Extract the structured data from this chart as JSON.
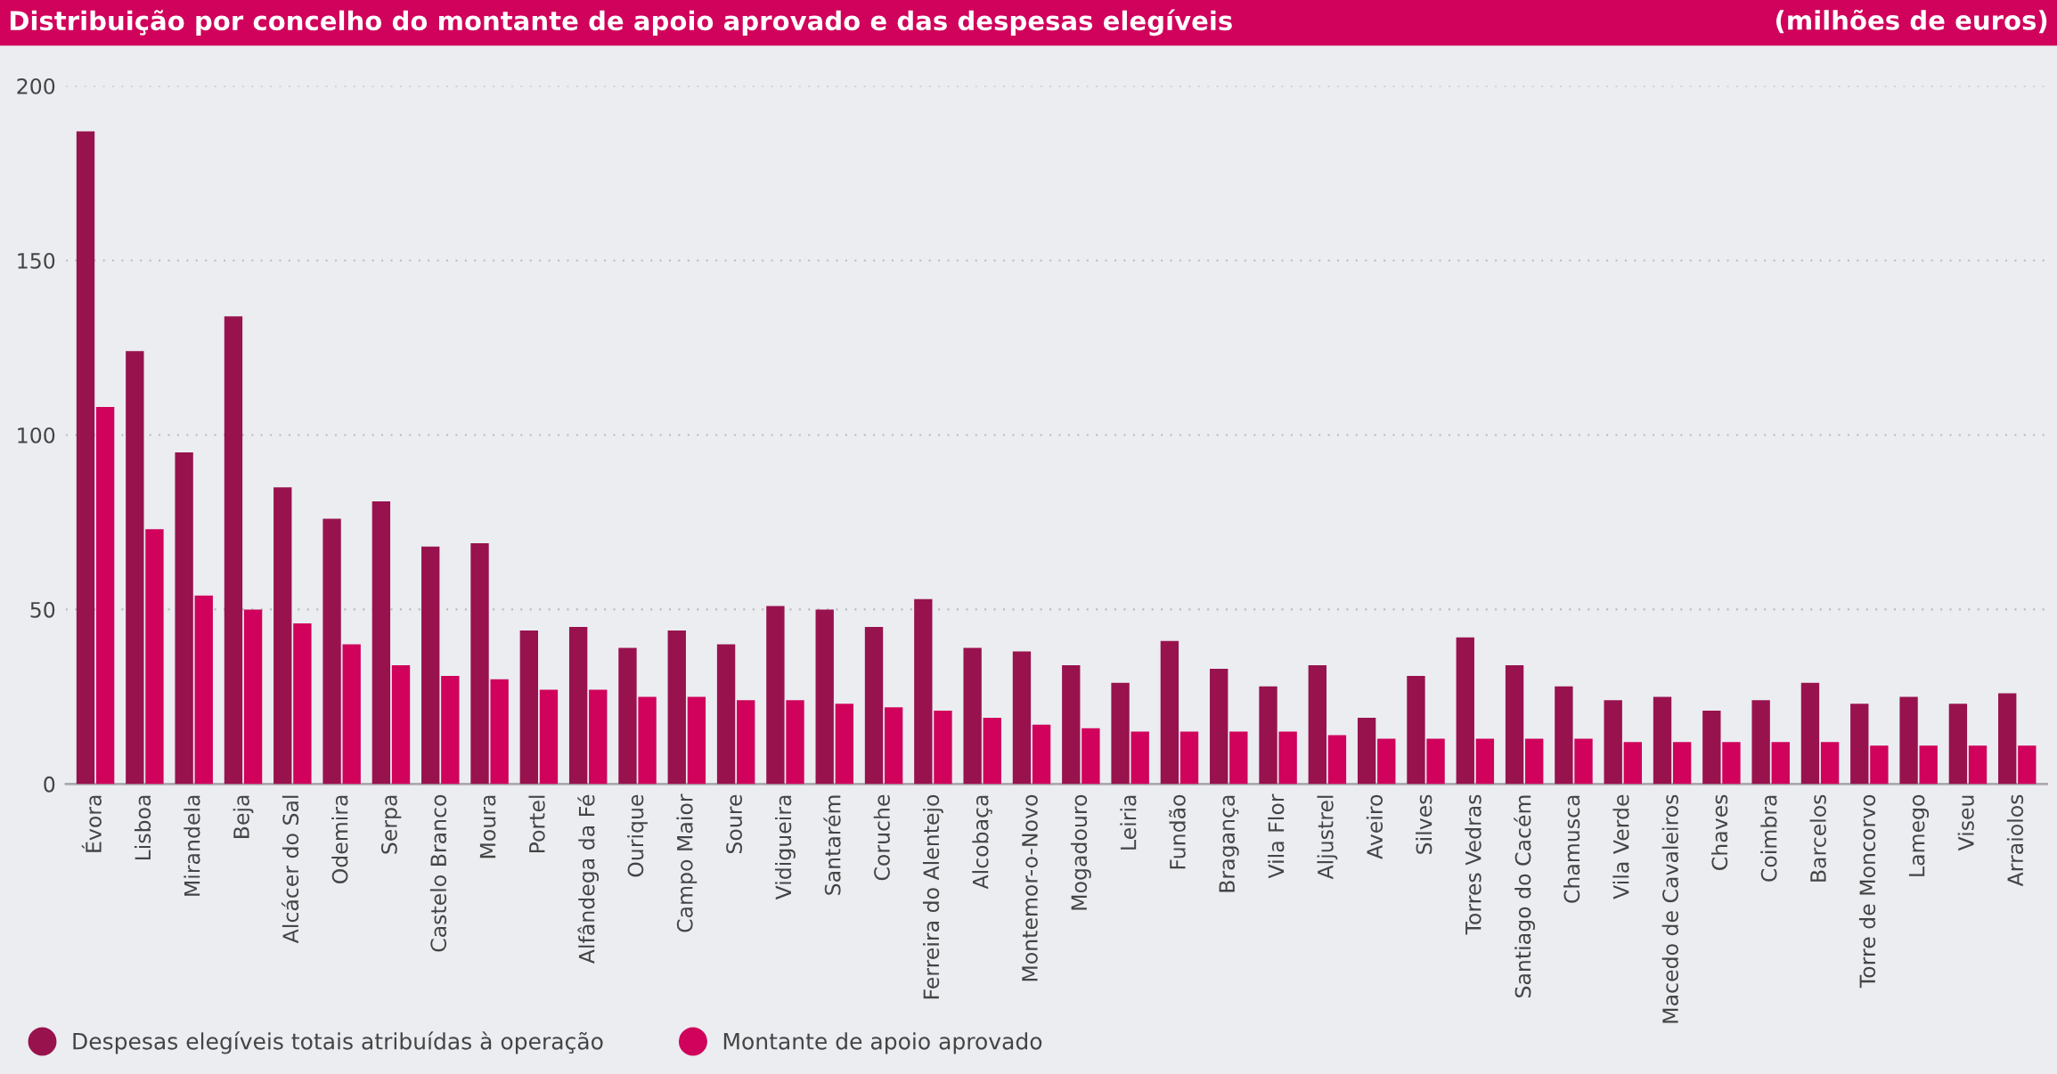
{
  "chart_data": {
    "type": "bar",
    "title": "Distribuição por concelho do montante de apoio aprovado e das despesas elegíveis",
    "subtitle": "(milhões de euros)",
    "categories": [
      "Évora",
      "Lisboa",
      "Mirandela",
      "Beja",
      "Alcácer do Sal",
      "Odemira",
      "Serpa",
      "Castelo Branco",
      "Moura",
      "Portel",
      "Alfândega da Fé",
      "Ourique",
      "Campo Maior",
      "Soure",
      "Vidigueira",
      "Santarém",
      "Coruche",
      "Ferreira do Alentejo",
      "Alcobaça",
      "Montemor-o-Novo",
      "Mogadouro",
      "Leiria",
      "Fundão",
      "Bragança",
      "Vila Flor",
      "Aljustrel",
      "Aveiro",
      "Silves",
      "Torres Vedras",
      "Santiago do Cacém",
      "Chamusca",
      "Vila Verde",
      "Macedo de Cavaleiros",
      "Chaves",
      "Coimbra",
      "Barcelos",
      "Torre de Moncorvo",
      "Lamego",
      "Viseu",
      "Arraiolos"
    ],
    "series": [
      {
        "name": "Despesas elegíveis totais atribuídas à operação",
        "color": "#98124e",
        "values": [
          187,
          124,
          95,
          134,
          85,
          76,
          81,
          68,
          69,
          44,
          45,
          39,
          44,
          40,
          51,
          50,
          45,
          53,
          39,
          38,
          34,
          29,
          41,
          33,
          28,
          34,
          19,
          31,
          42,
          34,
          28,
          24,
          25,
          21,
          24,
          29,
          23,
          25,
          23,
          26
        ]
      },
      {
        "name": "Montante de apoio aprovado",
        "color": "#d0025b",
        "values": [
          108,
          73,
          54,
          50,
          46,
          40,
          34,
          31,
          30,
          27,
          27,
          25,
          25,
          24,
          24,
          23,
          22,
          21,
          19,
          17,
          16,
          15,
          15,
          15,
          15,
          14,
          13,
          13,
          13,
          13,
          13,
          12,
          12,
          12,
          12,
          12,
          11,
          11,
          11,
          11
        ]
      }
    ],
    "ylim": [
      0,
      200
    ],
    "yticks": [
      0,
      50,
      100,
      150,
      200
    ],
    "grid": "y",
    "legend": "bottom left"
  }
}
